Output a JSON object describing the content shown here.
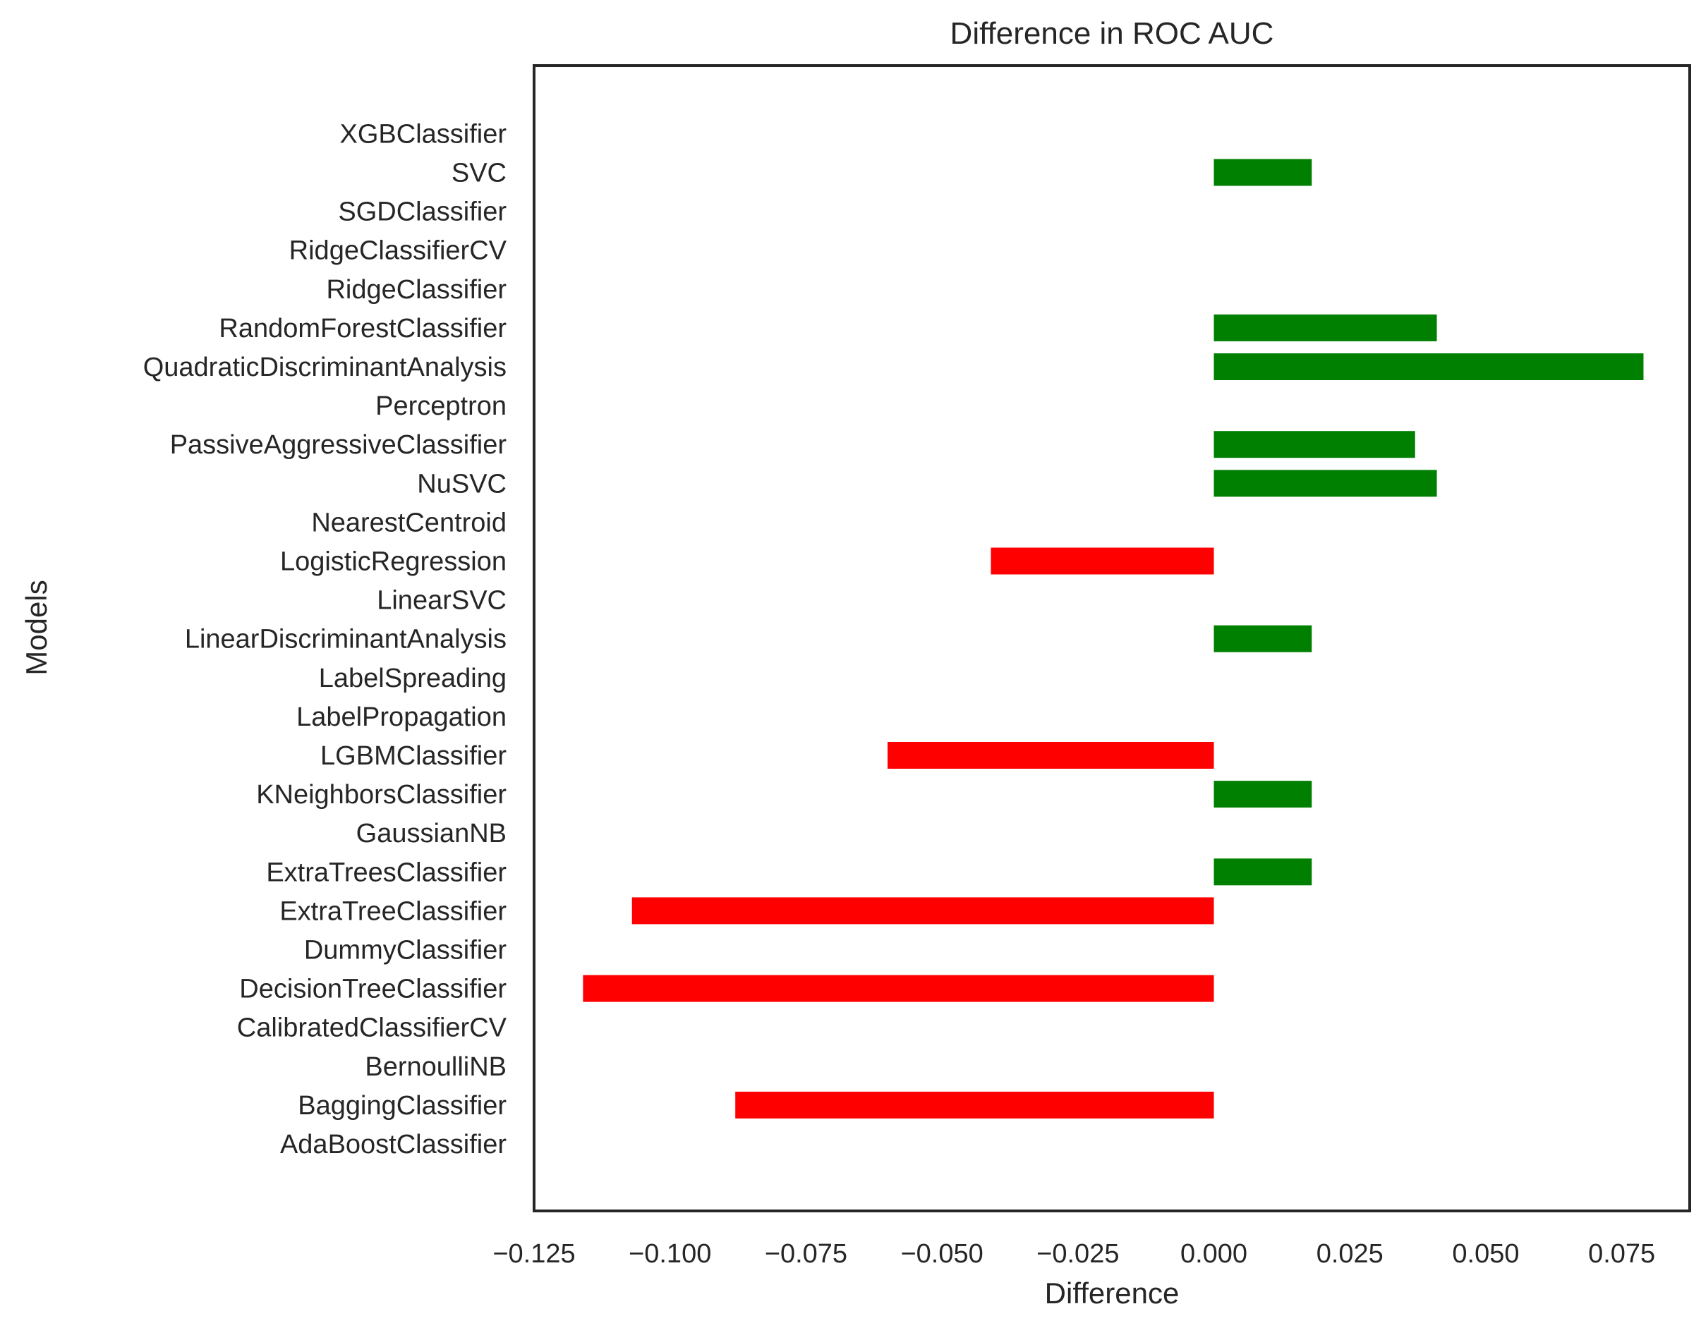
{
  "chart_data": {
    "type": "bar",
    "orientation": "horizontal",
    "title": "Difference in ROC AUC",
    "xlabel": "Difference",
    "ylabel": "Models",
    "xlim": [
      -0.125,
      0.0875
    ],
    "x_ticks": [
      -0.125,
      -0.1,
      -0.075,
      -0.05,
      -0.025,
      0.0,
      0.025,
      0.05,
      0.075
    ],
    "x_tick_labels": [
      "−0.125",
      "−0.100",
      "−0.075",
      "−0.050",
      "−0.025",
      "0.000",
      "0.025",
      "0.050",
      "0.075"
    ],
    "grid": false,
    "legend": "none",
    "categories": [
      "AdaBoostClassifier",
      "BaggingClassifier",
      "BernoulliNB",
      "CalibratedClassifierCV",
      "DecisionTreeClassifier",
      "DummyClassifier",
      "ExtraTreeClassifier",
      "ExtraTreesClassifier",
      "GaussianNB",
      "KNeighborsClassifier",
      "LGBMClassifier",
      "LabelPropagation",
      "LabelSpreading",
      "LinearDiscriminantAnalysis",
      "LinearSVC",
      "LogisticRegression",
      "NearestCentroid",
      "NuSVC",
      "PassiveAggressiveClassifier",
      "Perceptron",
      "QuadraticDiscriminantAnalysis",
      "RandomForestClassifier",
      "RidgeClassifier",
      "RidgeClassifierCV",
      "SGDClassifier",
      "SVC",
      "XGBClassifier"
    ],
    "values": [
      0,
      -0.088,
      0,
      0,
      -0.116,
      0,
      -0.107,
      0.018,
      0,
      0.018,
      -0.06,
      0,
      0,
      0.018,
      0,
      -0.041,
      0,
      0.041,
      0.037,
      0,
      0.079,
      0.041,
      0,
      0,
      0,
      0.018,
      0
    ],
    "colors": {
      "positive": "#008000",
      "negative": "#ff0000",
      "frame": "#262626",
      "text": "#262626"
    }
  }
}
